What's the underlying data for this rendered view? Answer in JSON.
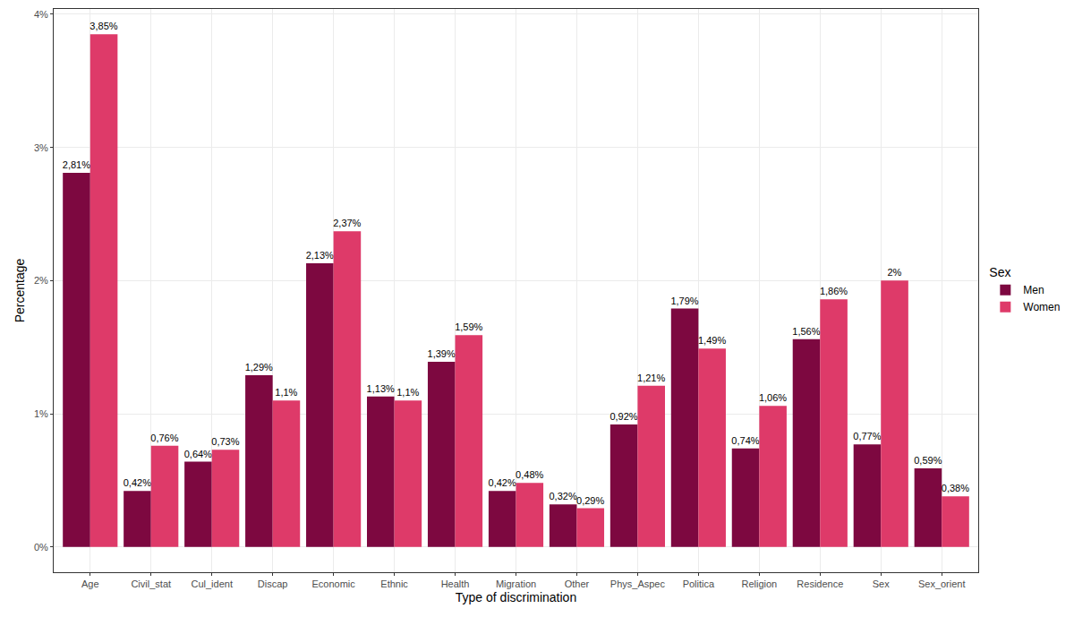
{
  "chart_data": {
    "type": "bar",
    "x_label": "Type of discrimination",
    "y_label": "Percentage",
    "legend_title": "Sex",
    "legend": "right",
    "grid": true,
    "data_labels": true,
    "categories": [
      "Age",
      "Civil_stat",
      "Cul_ident",
      "Discap",
      "Economic",
      "Ethnic",
      "Health",
      "Migration",
      "Other",
      "Phys_Aspec",
      "Politica",
      "Religion",
      "Residence",
      "Sex",
      "Sex_orient"
    ],
    "series": [
      {
        "name": "Men",
        "color": "#7d0840",
        "values": [
          2.81,
          0.42,
          0.64,
          1.29,
          2.13,
          1.13,
          1.39,
          0.42,
          0.32,
          0.92,
          1.79,
          0.74,
          1.56,
          0.77,
          0.59
        ],
        "value_labels": [
          "2,81%",
          "0,42%",
          "0,64%",
          "1,29%",
          "2,13%",
          "1,13%",
          "1,39%",
          "0,42%",
          "0,32%",
          "0,92%",
          "1,79%",
          "0,74%",
          "1,56%",
          "0,77%",
          "0,59%"
        ]
      },
      {
        "name": "Women",
        "color": "#de3a69",
        "values": [
          3.85,
          0.76,
          0.73,
          1.1,
          2.37,
          1.1,
          1.59,
          0.48,
          0.29,
          1.21,
          1.49,
          1.06,
          1.86,
          2,
          0.38
        ],
        "value_labels": [
          "3,85%",
          "0,76%",
          "0,73%",
          "1,1%",
          "2,37%",
          "1,1%",
          "1,59%",
          "0,48%",
          "0,29%",
          "1,21%",
          "1,49%",
          "1,06%",
          "1,86%",
          "2%",
          "0,38%"
        ]
      }
    ],
    "ylim": [
      -0.19,
      4.04
    ],
    "yticks": [
      {
        "value": 0,
        "label": "0%"
      },
      {
        "value": 1,
        "label": "1%"
      },
      {
        "value": 2,
        "label": "2%"
      },
      {
        "value": 3,
        "label": "3%"
      },
      {
        "value": 4,
        "label": "4%"
      }
    ]
  }
}
